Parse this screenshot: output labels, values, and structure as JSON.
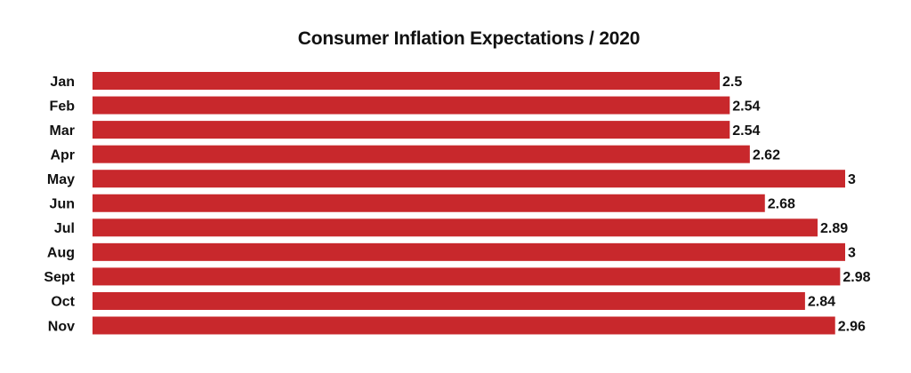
{
  "colors": {
    "bar": "#c8282c",
    "text": "#111111",
    "background": "#ffffff"
  },
  "chart_data": {
    "type": "bar",
    "orientation": "horizontal",
    "title": "Consumer Inflation Expectations / 2020",
    "xlabel": "",
    "ylabel": "",
    "grid": false,
    "legend": "none",
    "xlim": [
      0,
      3.3
    ],
    "categories": [
      "Jan",
      "Feb",
      "Mar",
      "Apr",
      "May",
      "Jun",
      "Jul",
      "Aug",
      "Sept",
      "Oct",
      "Nov"
    ],
    "values": [
      2.5,
      2.54,
      2.54,
      2.62,
      3,
      2.68,
      2.89,
      3,
      2.98,
      2.84,
      2.96
    ],
    "value_labels": [
      "2.5",
      "2.54",
      "2.54",
      "2.62",
      "3",
      "2.68",
      "2.89",
      "3",
      "2.98",
      "2.84",
      "2.96"
    ]
  }
}
